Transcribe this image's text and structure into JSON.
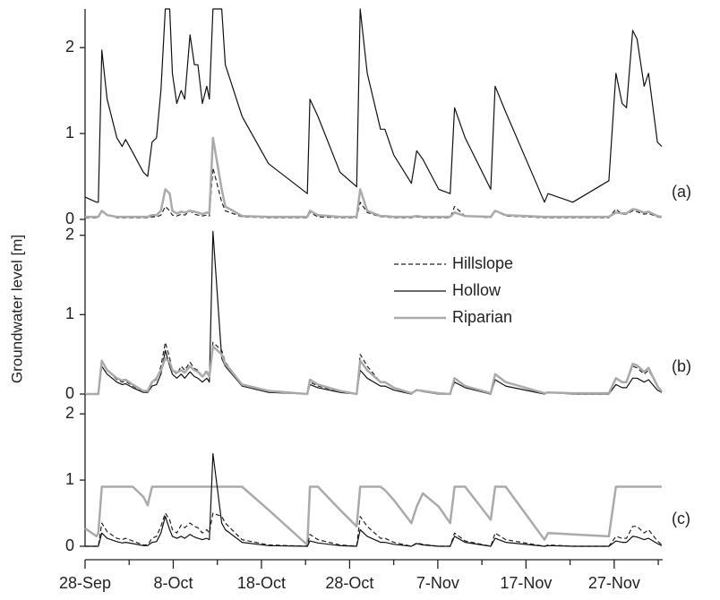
{
  "chart_data": [
    {
      "type": "line",
      "label": "(a)",
      "xlim": [
        0,
        65.5
      ],
      "ylim": [
        0,
        2.45
      ],
      "yticks": [
        0,
        1,
        2
      ],
      "x": [
        0,
        1.3,
        1.5,
        1.9,
        2.5,
        3.6,
        4.2,
        4.6,
        5.4,
        6.6,
        7.1,
        7.6,
        8.1,
        8.6,
        9.1,
        9.6,
        9.9,
        10.4,
        10.9,
        11.3,
        11.9,
        12.4,
        12.8,
        13.3,
        13.8,
        14.1,
        14.5,
        15.5,
        15.9,
        17.8,
        20.8,
        25.2,
        25.5,
        26.4,
        28.9,
        30.8,
        31.2,
        32.0,
        33.5,
        34.0,
        35.0,
        37.0,
        37.6,
        38.3,
        40.1,
        41.4,
        41.9,
        43.1,
        46.0,
        46.5,
        47.7,
        52.1,
        52.5,
        55.3,
        59.4,
        60.2,
        60.9,
        61.4,
        62.1,
        62.6,
        63.4,
        63.9,
        64.9,
        65.4
      ],
      "series": [
        {
          "name": "Hillslope",
          "color": "#222222",
          "linestyle": "dashed",
          "linewidth": 1.2,
          "values": [
            0.02,
            0.02,
            0.02,
            0.1,
            0.05,
            0.02,
            0.02,
            0.02,
            0.02,
            0.02,
            0.02,
            0.03,
            0.03,
            0.05,
            0.15,
            0.1,
            0.05,
            0.04,
            0.06,
            0.05,
            0.1,
            0.06,
            0.05,
            0.04,
            0.05,
            0.04,
            0.6,
            0.2,
            0.1,
            0.03,
            0.02,
            0.02,
            0.08,
            0.03,
            0.02,
            0.02,
            0.2,
            0.08,
            0.03,
            0.03,
            0.02,
            0.02,
            0.03,
            0.02,
            0.02,
            0.02,
            0.15,
            0.04,
            0.02,
            0.1,
            0.04,
            0.02,
            0.02,
            0.02,
            0.02,
            0.12,
            0.06,
            0.06,
            0.1,
            0.09,
            0.06,
            0.07,
            0.03,
            0.02
          ]
        },
        {
          "name": "Riparian",
          "color": "#aaaaaa",
          "linestyle": "solid",
          "linewidth": 2.5,
          "values": [
            0.03,
            0.03,
            0.03,
            0.1,
            0.05,
            0.03,
            0.03,
            0.03,
            0.03,
            0.03,
            0.03,
            0.05,
            0.05,
            0.1,
            0.35,
            0.3,
            0.1,
            0.07,
            0.09,
            0.08,
            0.1,
            0.09,
            0.08,
            0.06,
            0.08,
            0.07,
            0.95,
            0.35,
            0.15,
            0.04,
            0.03,
            0.03,
            0.1,
            0.05,
            0.03,
            0.03,
            0.35,
            0.1,
            0.04,
            0.04,
            0.03,
            0.03,
            0.04,
            0.03,
            0.03,
            0.03,
            0.08,
            0.04,
            0.03,
            0.1,
            0.05,
            0.03,
            0.03,
            0.03,
            0.03,
            0.08,
            0.07,
            0.07,
            0.12,
            0.11,
            0.08,
            0.09,
            0.04,
            0.03
          ]
        },
        {
          "name": "Hollow",
          "color": "#111111",
          "linestyle": "solid",
          "linewidth": 1.2,
          "values": [
            0.26,
            0.2,
            0.2,
            1.97,
            1.4,
            0.95,
            0.85,
            0.93,
            0.78,
            0.55,
            0.5,
            0.9,
            0.95,
            1.5,
            2.45,
            2.45,
            1.7,
            1.35,
            1.5,
            1.4,
            2.15,
            1.8,
            1.8,
            1.35,
            1.55,
            1.4,
            2.45,
            2.45,
            1.8,
            1.2,
            0.65,
            0.3,
            1.4,
            1.2,
            0.55,
            0.38,
            2.45,
            1.7,
            1.05,
            1.05,
            0.75,
            0.42,
            0.8,
            0.7,
            0.35,
            0.3,
            1.3,
            0.95,
            0.35,
            1.55,
            1.25,
            0.2,
            0.3,
            0.2,
            0.45,
            1.7,
            1.35,
            1.3,
            2.2,
            2.1,
            1.55,
            1.7,
            0.9,
            0.85
          ]
        }
      ]
    },
    {
      "type": "line",
      "label": "(b)",
      "ylabel": "Groundwater level [m]",
      "legend": "upper right",
      "xlim": [
        0,
        65.5
      ],
      "ylim": [
        0,
        2.2
      ],
      "yticks": [
        0,
        1,
        2
      ],
      "x": [
        0,
        1.3,
        1.5,
        1.9,
        2.5,
        3.6,
        4.2,
        4.6,
        5.4,
        6.6,
        7.1,
        7.6,
        8.1,
        8.6,
        9.1,
        9.6,
        9.9,
        10.4,
        10.9,
        11.3,
        11.9,
        12.4,
        12.8,
        13.3,
        13.8,
        14.1,
        14.5,
        15.5,
        15.9,
        17.8,
        20.8,
        25.2,
        25.5,
        26.4,
        28.9,
        30.8,
        31.2,
        32.0,
        33.5,
        34.0,
        35.0,
        37.0,
        37.6,
        38.3,
        40.1,
        41.4,
        41.9,
        43.1,
        46.0,
        46.5,
        47.7,
        52.1,
        52.5,
        55.3,
        59.4,
        60.2,
        60.9,
        61.4,
        62.1,
        62.6,
        63.4,
        63.9,
        64.9,
        65.4
      ],
      "series": [
        {
          "name": "Hillslope",
          "color": "#222222",
          "linestyle": "dashed",
          "linewidth": 1.2,
          "values": [
            0,
            0,
            0,
            0.4,
            0.3,
            0.18,
            0.15,
            0.16,
            0.1,
            0.03,
            0.03,
            0.15,
            0.18,
            0.35,
            0.65,
            0.45,
            0.3,
            0.25,
            0.35,
            0.3,
            0.4,
            0.32,
            0.3,
            0.22,
            0.3,
            0.22,
            0.65,
            0.55,
            0.4,
            0.12,
            0.03,
            0,
            0.15,
            0.1,
            0.03,
            0,
            0.5,
            0.35,
            0.15,
            0.15,
            0.08,
            0,
            0.05,
            0.04,
            0,
            0,
            0.2,
            0.1,
            0,
            0.25,
            0.15,
            0,
            0.02,
            0,
            0,
            0.2,
            0.15,
            0.15,
            0.35,
            0.33,
            0.25,
            0.3,
            0.1,
            0.03
          ]
        },
        {
          "name": "Hollow",
          "color": "#111111",
          "linestyle": "solid",
          "linewidth": 1.2,
          "values": [
            0,
            0,
            0,
            0.35,
            0.25,
            0.15,
            0.12,
            0.13,
            0.08,
            0.02,
            0.02,
            0.1,
            0.12,
            0.25,
            0.55,
            0.35,
            0.25,
            0.2,
            0.25,
            0.2,
            0.28,
            0.22,
            0.2,
            0.15,
            0.2,
            0.15,
            2.05,
            0.45,
            0.35,
            0.1,
            0.02,
            0,
            0.12,
            0.08,
            0.02,
            0,
            0.3,
            0.2,
            0.1,
            0.1,
            0.05,
            0,
            0.05,
            0.03,
            0,
            0,
            0.15,
            0.08,
            0,
            0.18,
            0.1,
            0,
            0.02,
            0,
            0,
            0.12,
            0.08,
            0.08,
            0.2,
            0.2,
            0.15,
            0.18,
            0.05,
            0.02
          ]
        },
        {
          "name": "Riparian",
          "color": "#aaaaaa",
          "linestyle": "solid",
          "linewidth": 2.5,
          "values": [
            0,
            0,
            0,
            0.42,
            0.3,
            0.2,
            0.17,
            0.18,
            0.12,
            0.04,
            0.04,
            0.15,
            0.2,
            0.3,
            0.45,
            0.4,
            0.3,
            0.27,
            0.3,
            0.27,
            0.35,
            0.3,
            0.28,
            0.22,
            0.28,
            0.22,
            0.6,
            0.5,
            0.38,
            0.12,
            0.04,
            0,
            0.18,
            0.12,
            0.04,
            0,
            0.42,
            0.3,
            0.15,
            0.15,
            0.08,
            0.01,
            0.05,
            0.04,
            0.01,
            0,
            0.2,
            0.1,
            0.01,
            0.25,
            0.15,
            0.01,
            0.02,
            0.01,
            0.01,
            0.2,
            0.15,
            0.15,
            0.38,
            0.36,
            0.28,
            0.33,
            0.1,
            0.03
          ]
        }
      ]
    },
    {
      "type": "line",
      "label": "(c)",
      "xlim": [
        0,
        65.5
      ],
      "ylim": [
        0,
        2.3
      ],
      "yticks": [
        0,
        1,
        2
      ],
      "xticks": [
        {
          "value": 0,
          "label": "28-Sep"
        },
        {
          "value": 10,
          "label": "8-Oct"
        },
        {
          "value": 20,
          "label": "18-Oct"
        },
        {
          "value": 30,
          "label": "28-Oct"
        },
        {
          "value": 40,
          "label": "7-Nov"
        },
        {
          "value": 50,
          "label": "17-Nov"
        },
        {
          "value": 60,
          "label": "27-Nov"
        }
      ],
      "xminorticks": [
        5,
        15,
        25,
        35,
        45,
        55,
        65
      ],
      "x": [
        0,
        1.3,
        1.5,
        1.9,
        2.5,
        3.6,
        4.2,
        4.6,
        5.4,
        6.6,
        7.1,
        7.6,
        8.1,
        8.6,
        9.1,
        9.6,
        9.9,
        10.4,
        10.9,
        11.3,
        11.9,
        12.4,
        12.8,
        13.3,
        13.8,
        14.1,
        14.5,
        15.5,
        15.9,
        17.8,
        20.8,
        25.2,
        25.5,
        26.4,
        28.9,
        30.8,
        31.2,
        32.0,
        33.5,
        34.0,
        35.0,
        37.0,
        37.6,
        38.3,
        40.1,
        41.4,
        41.9,
        43.1,
        46.0,
        46.5,
        47.7,
        52.1,
        52.5,
        55.3,
        59.4,
        60.2,
        60.9,
        61.4,
        62.1,
        62.6,
        63.4,
        63.9,
        64.9,
        65.4
      ],
      "series": [
        {
          "name": "Riparian",
          "color": "#aaaaaa",
          "linestyle": "solid",
          "linewidth": 2.5,
          "values": [
            0.27,
            0.15,
            0.2,
            0.9,
            0.9,
            0.9,
            0.9,
            0.9,
            0.9,
            0.75,
            0.62,
            0.9,
            0.9,
            0.9,
            0.9,
            0.9,
            0.9,
            0.9,
            0.9,
            0.9,
            0.9,
            0.9,
            0.9,
            0.9,
            0.9,
            0.9,
            0.9,
            0.9,
            0.9,
            0.9,
            0.55,
            0.02,
            0.9,
            0.9,
            0.55,
            0.3,
            0.9,
            0.9,
            0.9,
            0.85,
            0.7,
            0.35,
            0.6,
            0.8,
            0.6,
            0.35,
            0.9,
            0.9,
            0.4,
            0.9,
            0.9,
            0.1,
            0.2,
            0.18,
            0.15,
            0.9,
            0.9,
            0.9,
            0.9,
            0.9,
            0.9,
            0.9,
            0.9,
            0.9
          ]
        },
        {
          "name": "Hillslope",
          "color": "#222222",
          "linestyle": "dashed",
          "linewidth": 1.2,
          "values": [
            0,
            0,
            0,
            0.35,
            0.22,
            0.12,
            0.1,
            0.12,
            0.08,
            0.02,
            0.02,
            0.12,
            0.15,
            0.3,
            0.5,
            0.4,
            0.25,
            0.2,
            0.32,
            0.28,
            0.35,
            0.3,
            0.28,
            0.2,
            0.25,
            0.2,
            0.5,
            0.45,
            0.35,
            0.1,
            0.02,
            0,
            0.18,
            0.1,
            0.02,
            0,
            0.45,
            0.3,
            0.12,
            0.12,
            0.06,
            0,
            0.05,
            0.03,
            0,
            0,
            0.2,
            0.08,
            0,
            0.2,
            0.1,
            0,
            0.02,
            0,
            0,
            0.15,
            0.12,
            0.12,
            0.3,
            0.3,
            0.2,
            0.25,
            0.08,
            0.02
          ]
        },
        {
          "name": "Hollow",
          "color": "#111111",
          "linestyle": "solid",
          "linewidth": 1.2,
          "values": [
            0,
            0,
            0,
            0.2,
            0.12,
            0.07,
            0.05,
            0.06,
            0.04,
            0.01,
            0.01,
            0.06,
            0.07,
            0.2,
            0.45,
            0.25,
            0.15,
            0.12,
            0.15,
            0.12,
            0.18,
            0.14,
            0.12,
            0.1,
            0.12,
            0.1,
            1.4,
            0.35,
            0.25,
            0.06,
            0.01,
            0,
            0.08,
            0.05,
            0.01,
            0,
            0.25,
            0.15,
            0.06,
            0.06,
            0.03,
            0,
            0.04,
            0.02,
            0,
            0,
            0.15,
            0.06,
            0,
            0.12,
            0.06,
            0,
            0.01,
            0,
            0,
            0.08,
            0.06,
            0.06,
            0.15,
            0.14,
            0.1,
            0.12,
            0.04,
            0.01
          ]
        }
      ]
    }
  ]
}
